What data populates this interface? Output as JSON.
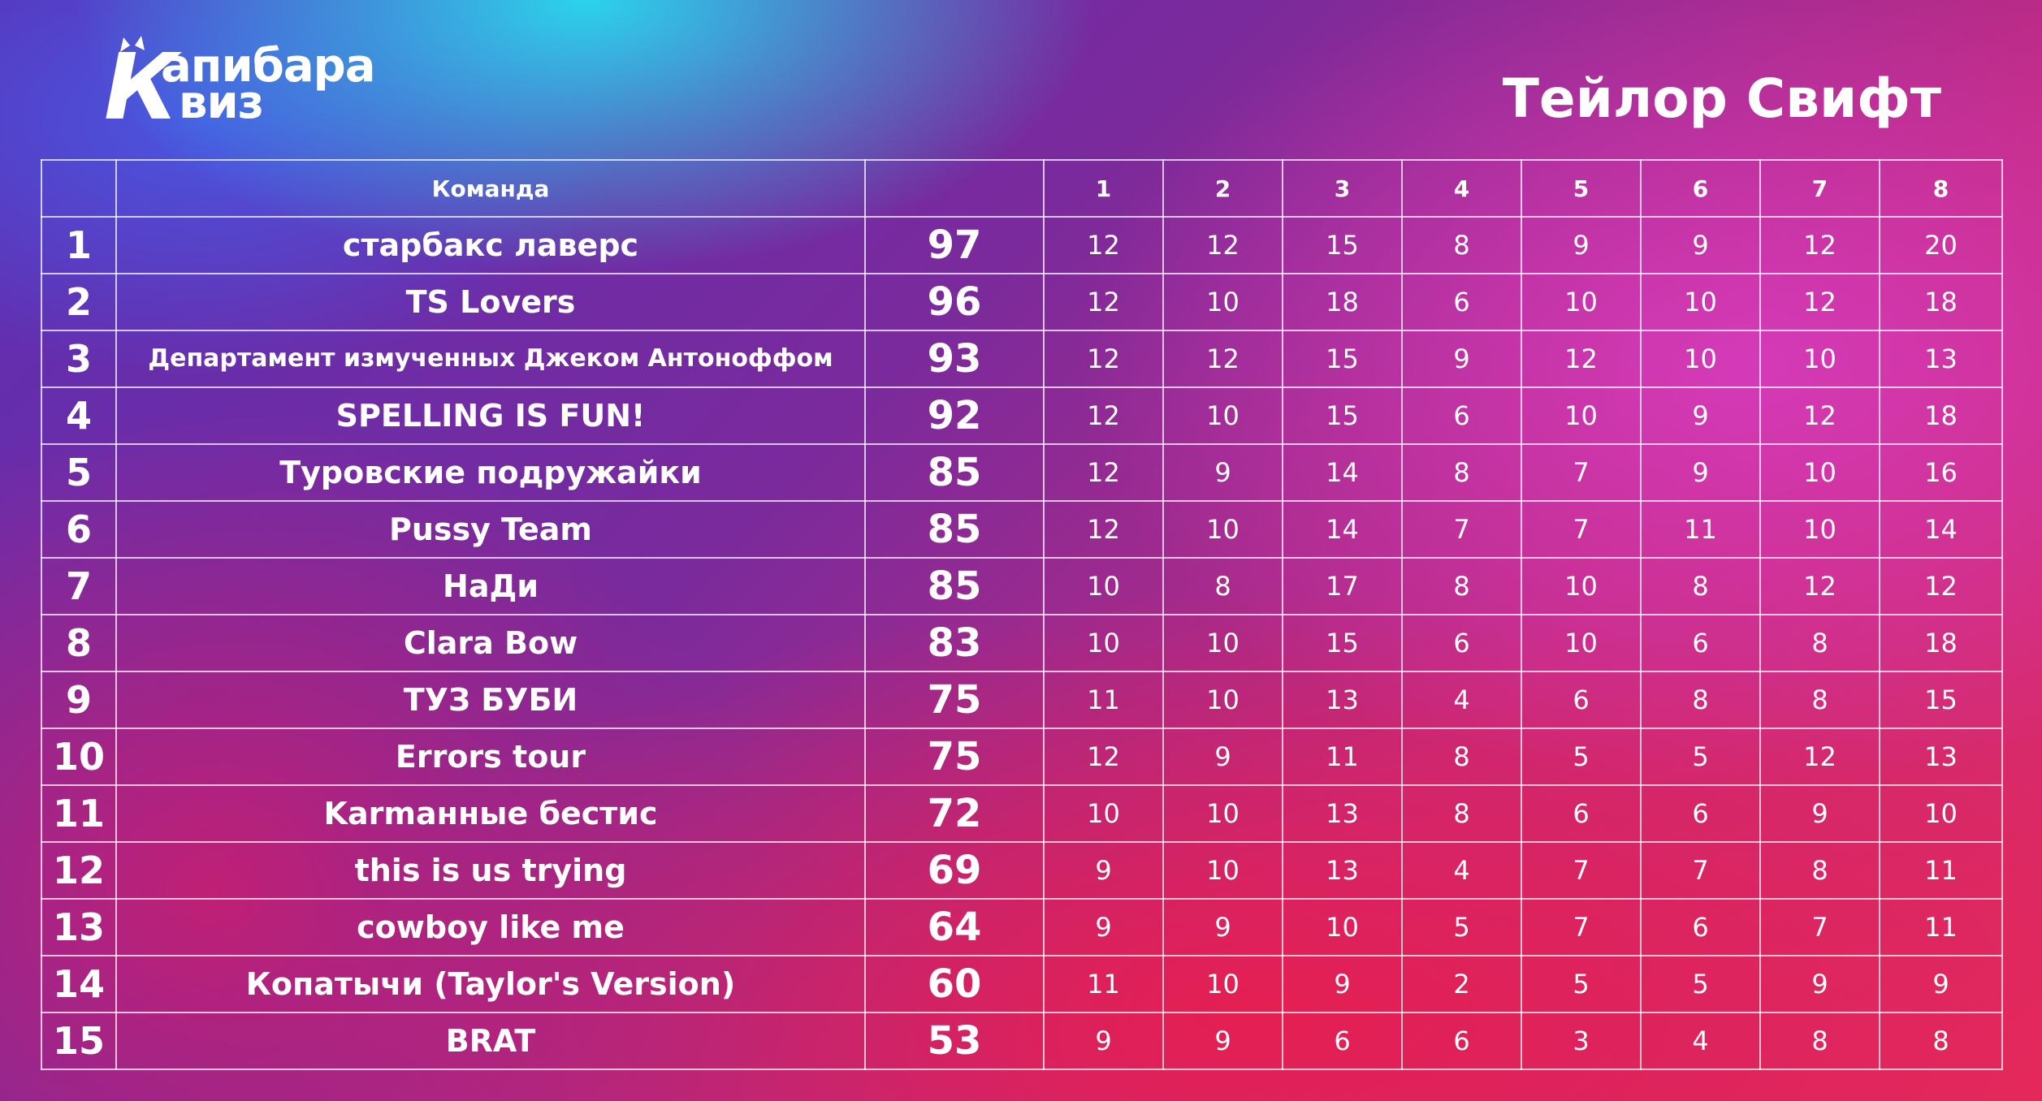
{
  "brand": {
    "logo_k": "К",
    "logo_top": "апибара",
    "logo_bottom": "виз"
  },
  "title": "Тейлор Свифт",
  "table": {
    "headers": {
      "rank": "",
      "team": "Команда",
      "total": "",
      "rounds": [
        "1",
        "2",
        "3",
        "4",
        "5",
        "6",
        "7",
        "8"
      ]
    },
    "rows": [
      {
        "rank": "1",
        "team": "старбакс лаверс",
        "total": "97",
        "rounds": [
          "12",
          "12",
          "15",
          "8",
          "9",
          "9",
          "12",
          "20"
        ]
      },
      {
        "rank": "2",
        "team": "TS Lovers",
        "total": "96",
        "rounds": [
          "12",
          "10",
          "18",
          "6",
          "10",
          "10",
          "12",
          "18"
        ]
      },
      {
        "rank": "3",
        "team": "Департамент измученных Джеком Антоноффом",
        "total": "93",
        "rounds": [
          "12",
          "12",
          "15",
          "9",
          "12",
          "10",
          "10",
          "13"
        ]
      },
      {
        "rank": "4",
        "team": "SPELLING IS FUN!",
        "total": "92",
        "rounds": [
          "12",
          "10",
          "15",
          "6",
          "10",
          "9",
          "12",
          "18"
        ]
      },
      {
        "rank": "5",
        "team": "Туровские подружайки",
        "total": "85",
        "rounds": [
          "12",
          "9",
          "14",
          "8",
          "7",
          "9",
          "10",
          "16"
        ]
      },
      {
        "rank": "6",
        "team": "Pussy Team",
        "total": "85",
        "rounds": [
          "12",
          "10",
          "14",
          "7",
          "7",
          "11",
          "10",
          "14"
        ]
      },
      {
        "rank": "7",
        "team": "НаДи",
        "total": "85",
        "rounds": [
          "10",
          "8",
          "17",
          "8",
          "10",
          "8",
          "12",
          "12"
        ]
      },
      {
        "rank": "8",
        "team": "Clara Bow",
        "total": "83",
        "rounds": [
          "10",
          "10",
          "15",
          "6",
          "10",
          "6",
          "8",
          "18"
        ]
      },
      {
        "rank": "9",
        "team": "ТУЗ БУБИ",
        "total": "75",
        "rounds": [
          "11",
          "10",
          "13",
          "4",
          "6",
          "8",
          "8",
          "15"
        ]
      },
      {
        "rank": "10",
        "team": "Errors tour",
        "total": "75",
        "rounds": [
          "12",
          "9",
          "11",
          "8",
          "5",
          "5",
          "12",
          "13"
        ]
      },
      {
        "rank": "11",
        "team": "Karmанные бестис",
        "total": "72",
        "rounds": [
          "10",
          "10",
          "13",
          "8",
          "6",
          "6",
          "9",
          "10"
        ]
      },
      {
        "rank": "12",
        "team": "this is us trying",
        "total": "69",
        "rounds": [
          "9",
          "10",
          "13",
          "4",
          "7",
          "7",
          "8",
          "11"
        ]
      },
      {
        "rank": "13",
        "team": "cowboy like me",
        "total": "64",
        "rounds": [
          "9",
          "9",
          "10",
          "5",
          "7",
          "6",
          "7",
          "11"
        ]
      },
      {
        "rank": "14",
        "team": "Копатычи (Taylor's Version)",
        "total": "60",
        "rounds": [
          "11",
          "10",
          "9",
          "2",
          "5",
          "5",
          "9",
          "9"
        ]
      },
      {
        "rank": "15",
        "team": "BRAT",
        "total": "53",
        "rounds": [
          "9",
          "9",
          "6",
          "6",
          "3",
          "4",
          "8",
          "8"
        ]
      }
    ]
  }
}
